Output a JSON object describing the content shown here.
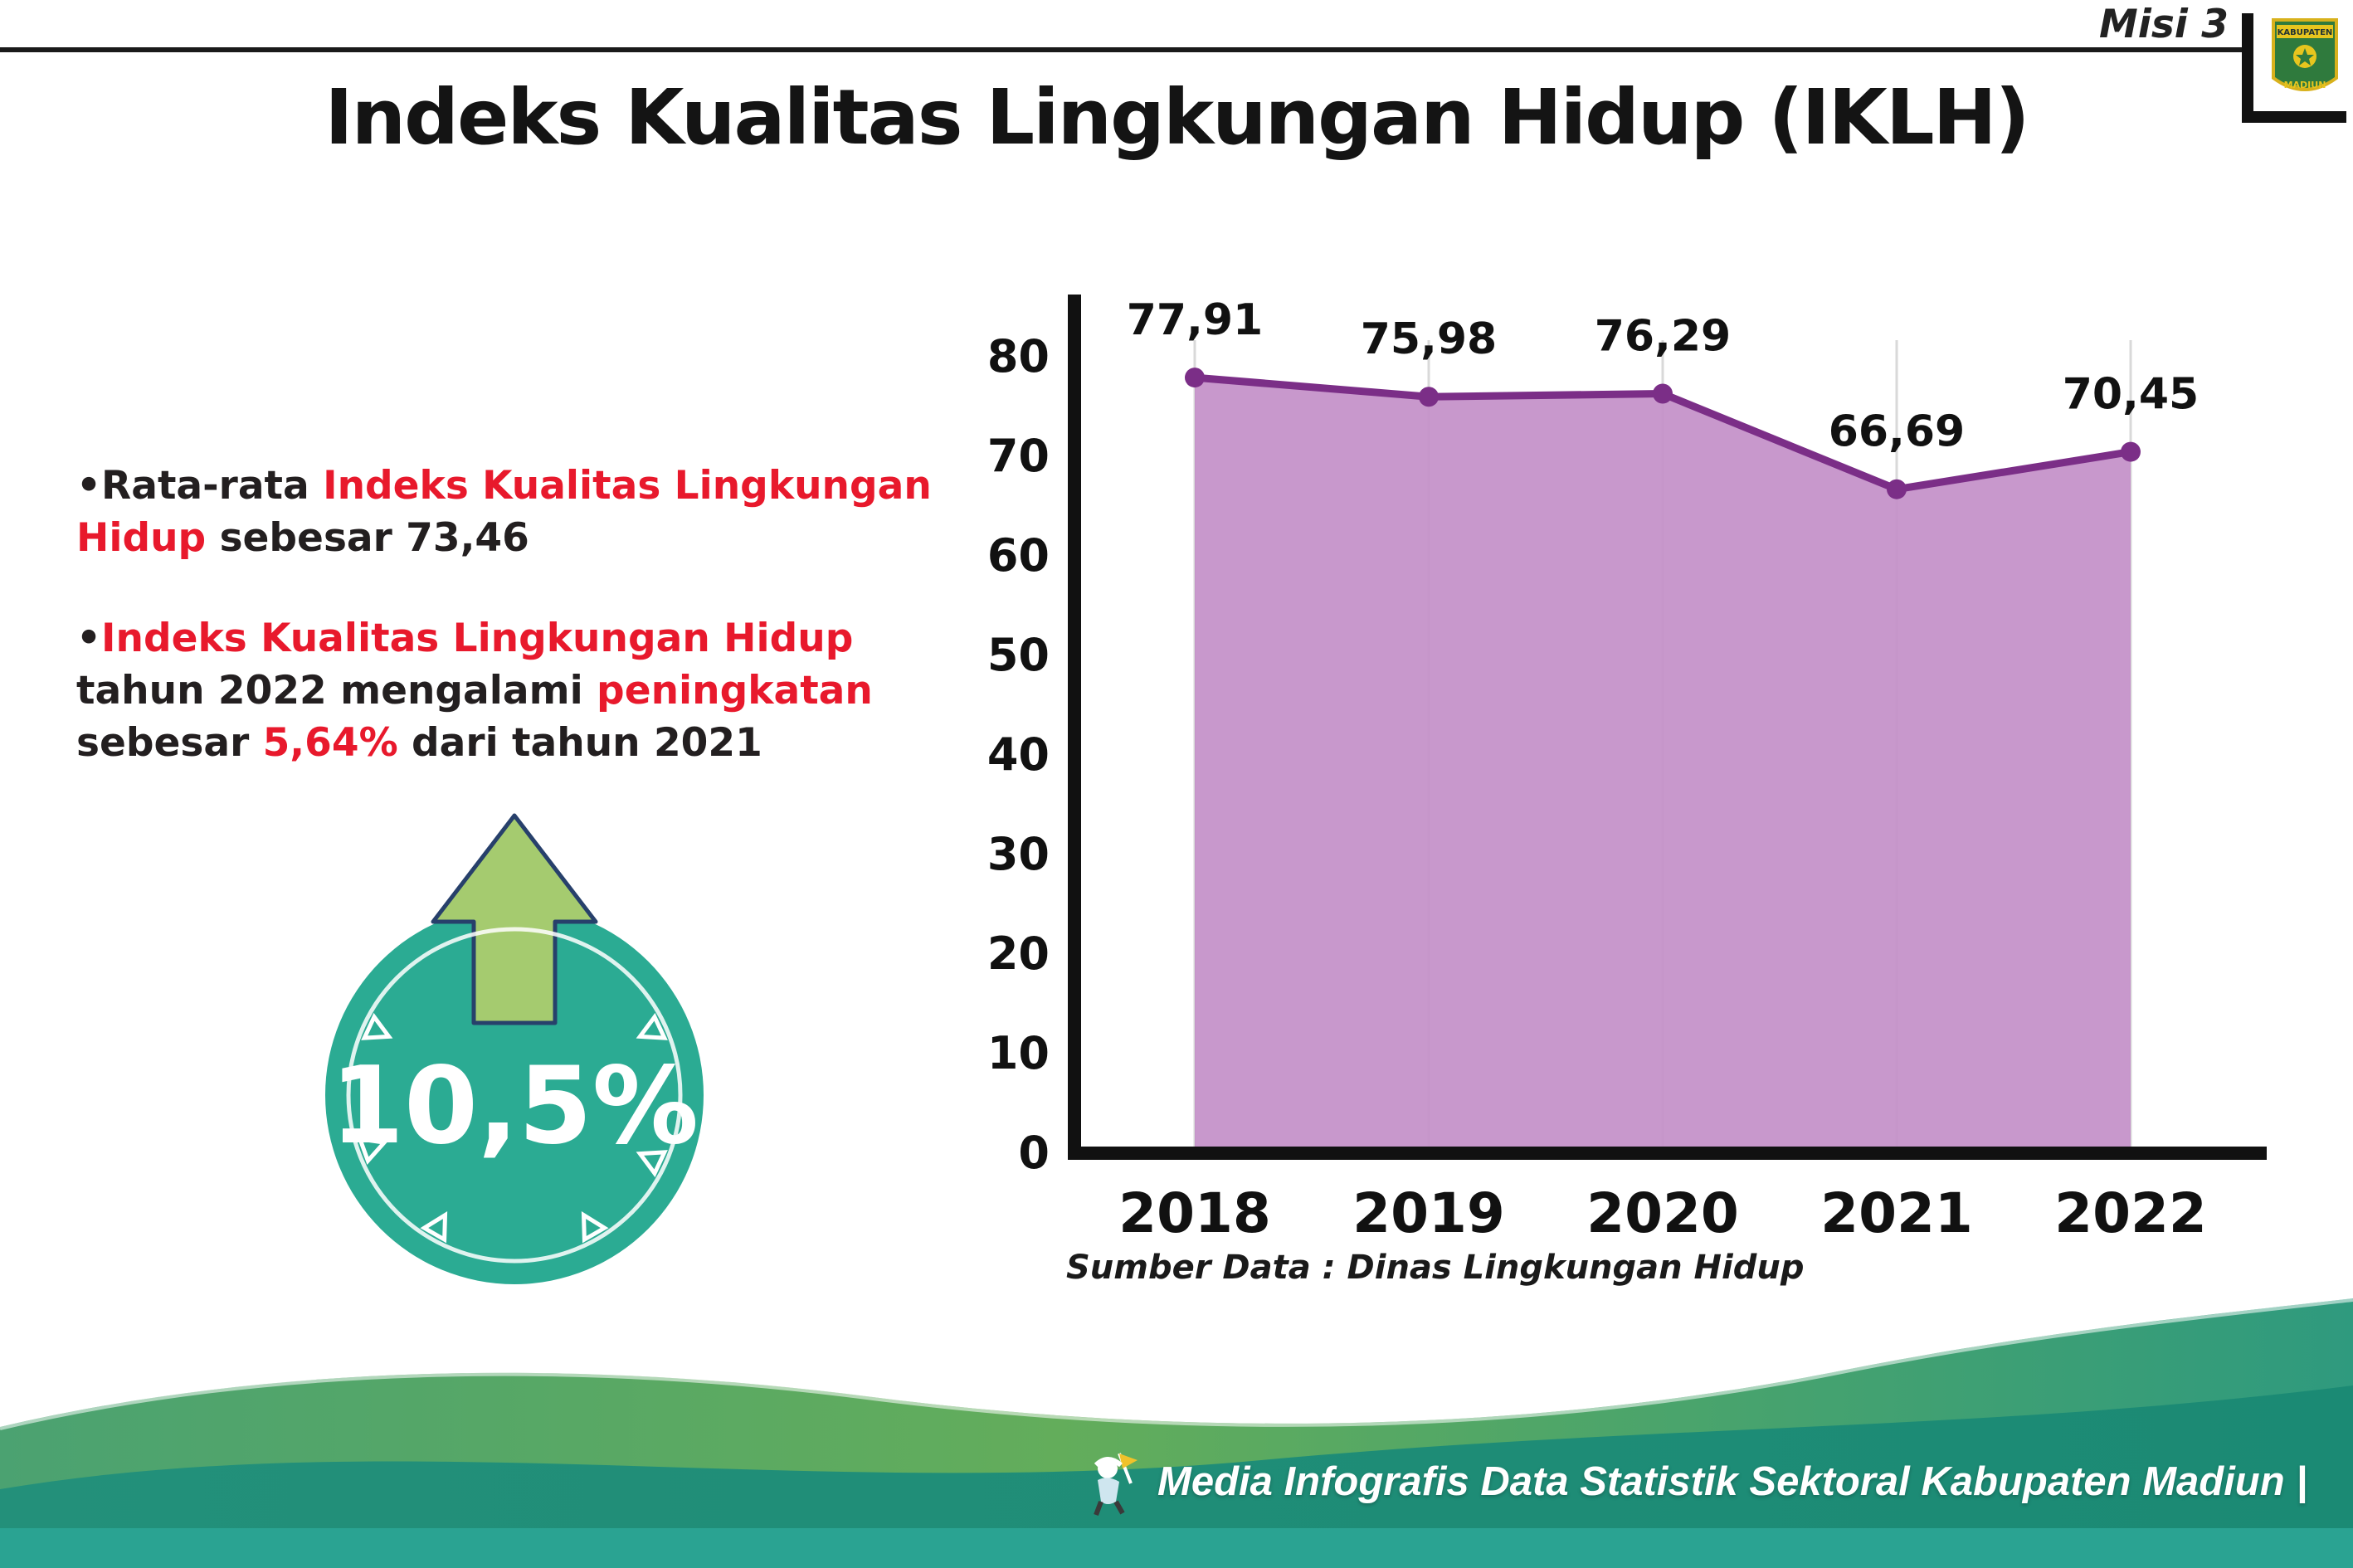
{
  "header": {
    "misi": "Misi 3",
    "logo": {
      "top": "KABUPATEN",
      "bottom": "MADIUN"
    }
  },
  "title": "Indeks Kualitas Lingkungan Hidup (IKLH)",
  "bullets": [
    {
      "segments": [
        {
          "text": "Rata-rata ",
          "color": "dark"
        },
        {
          "text": "Indeks Kualitas Lingkungan Hidup",
          "color": "red"
        },
        {
          "text": " sebesar 73,46",
          "color": "dark"
        }
      ]
    },
    {
      "segments": [
        {
          "text": "Indeks Kualitas Lingkungan Hidup",
          "color": "red"
        },
        {
          "text": " tahun 2022 mengalami ",
          "color": "dark"
        },
        {
          "text": "peningkatan",
          "color": "red"
        },
        {
          "text": " sebesar ",
          "color": "dark"
        },
        {
          "text": "5,64%",
          "color": "red"
        },
        {
          "text": " dari tahun 2021",
          "color": "dark"
        }
      ]
    }
  ],
  "badge": {
    "value": "10,5%",
    "circle_color": "#2bab93",
    "arrow_color": "#a5cb6f"
  },
  "chart_data": {
    "type": "area",
    "title": "Indeks Kualitas Lingkungan Hidup (IKLH)",
    "categories": [
      "2018",
      "2019",
      "2020",
      "2021",
      "2022"
    ],
    "values": [
      77.91,
      75.98,
      76.29,
      66.69,
      70.45
    ],
    "value_labels": [
      "77,91",
      "75,98",
      "76,29",
      "66,69",
      "70,45"
    ],
    "ylim": [
      0,
      80
    ],
    "ytick_step": 10,
    "grid": "vertical-light",
    "line_color": "#7b2e87",
    "fill_color": "#c592c9",
    "axis_color": "#111111",
    "source": "Sumber Data : Dinas Lingkungan Hidup"
  },
  "footer": {
    "text": "Media Infografis Data Statistik Sektoral Kabupaten Madiun |",
    "bar_color": "#2aa392"
  }
}
